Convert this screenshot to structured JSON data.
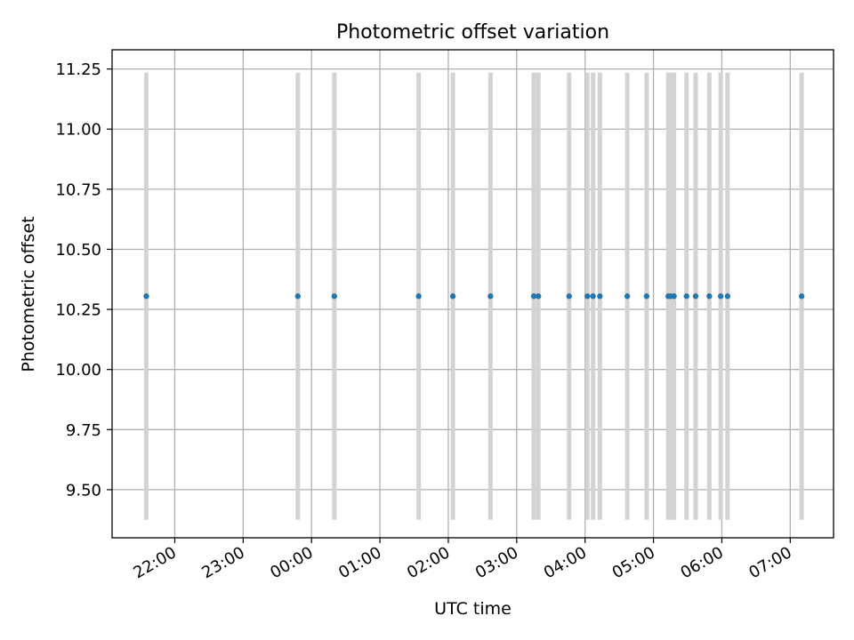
{
  "chart_data": {
    "type": "scatter",
    "title": "Photometric offset variation",
    "xlabel": "UTC time",
    "ylabel": "Photometric offset",
    "grid": true,
    "x_tick_labels": [
      "22:00",
      "23:00",
      "00:00",
      "01:00",
      "02:00",
      "03:00",
      "04:00",
      "05:00",
      "06:00",
      "07:00"
    ],
    "y_tick_labels": [
      "9.50",
      "9.75",
      "10.00",
      "10.25",
      "10.50",
      "10.75",
      "11.00",
      "11.25"
    ],
    "y_ticks": [
      9.5,
      9.75,
      10.0,
      10.25,
      10.5,
      10.75,
      11.0,
      11.25
    ],
    "ylim": [
      9.3,
      11.33
    ],
    "xlim": [
      "21:05",
      "31:38"
    ],
    "marker_color": "#1f77b4",
    "band_color": "#d3d3d3",
    "grid_color": "#b0b0b0",
    "band_range": [
      9.375,
      11.235
    ],
    "series": [
      {
        "x": [
          "21:35",
          "23:48",
          "00:20",
          "01:34",
          "02:04",
          "02:37",
          "03:15",
          "03:19",
          "03:46",
          "04:02",
          "04:07",
          "04:13",
          "04:37",
          "04:54",
          "05:13",
          "05:15",
          "05:18",
          "05:29",
          "05:37",
          "05:49",
          "05:59",
          "06:05",
          "07:10"
        ],
        "y": [
          10.305,
          10.305,
          10.305,
          10.305,
          10.305,
          10.305,
          10.305,
          10.305,
          10.305,
          10.305,
          10.305,
          10.305,
          10.305,
          10.305,
          10.305,
          10.305,
          10.305,
          10.305,
          10.305,
          10.305,
          10.305,
          10.305,
          10.305
        ]
      }
    ]
  }
}
